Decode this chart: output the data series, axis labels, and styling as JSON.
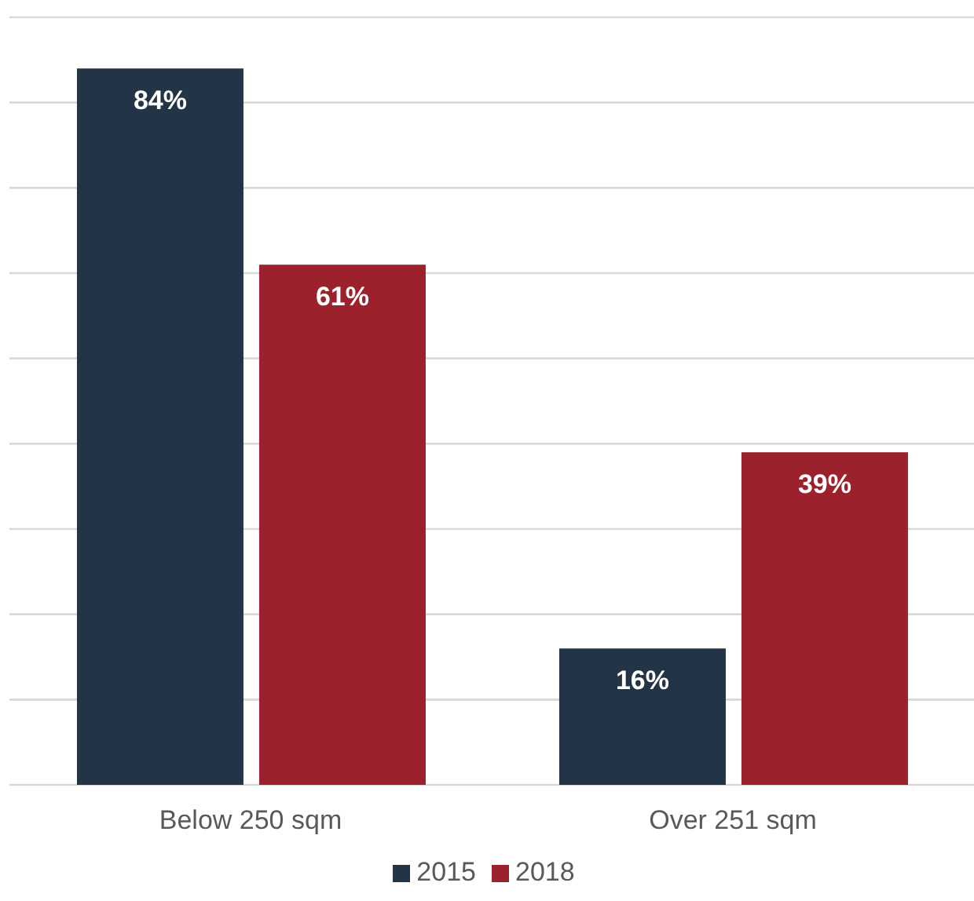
{
  "chart_data": {
    "type": "bar",
    "categories": [
      "Below 250 sqm",
      "Over 251 sqm"
    ],
    "series": [
      {
        "name": "2015",
        "color": "#243447",
        "values": [
          84,
          16
        ],
        "value_labels": [
          "84%",
          "16%"
        ]
      },
      {
        "name": "2018",
        "color": "#9b222d",
        "values": [
          61,
          39
        ],
        "value_labels": [
          "61%",
          "39%"
        ]
      }
    ],
    "ylim": [
      0,
      90
    ],
    "yticks": [
      0,
      10,
      20,
      30,
      40,
      50,
      60,
      70,
      80,
      90
    ],
    "grid": "y",
    "legend": "bottom",
    "tick_labels": "x"
  }
}
